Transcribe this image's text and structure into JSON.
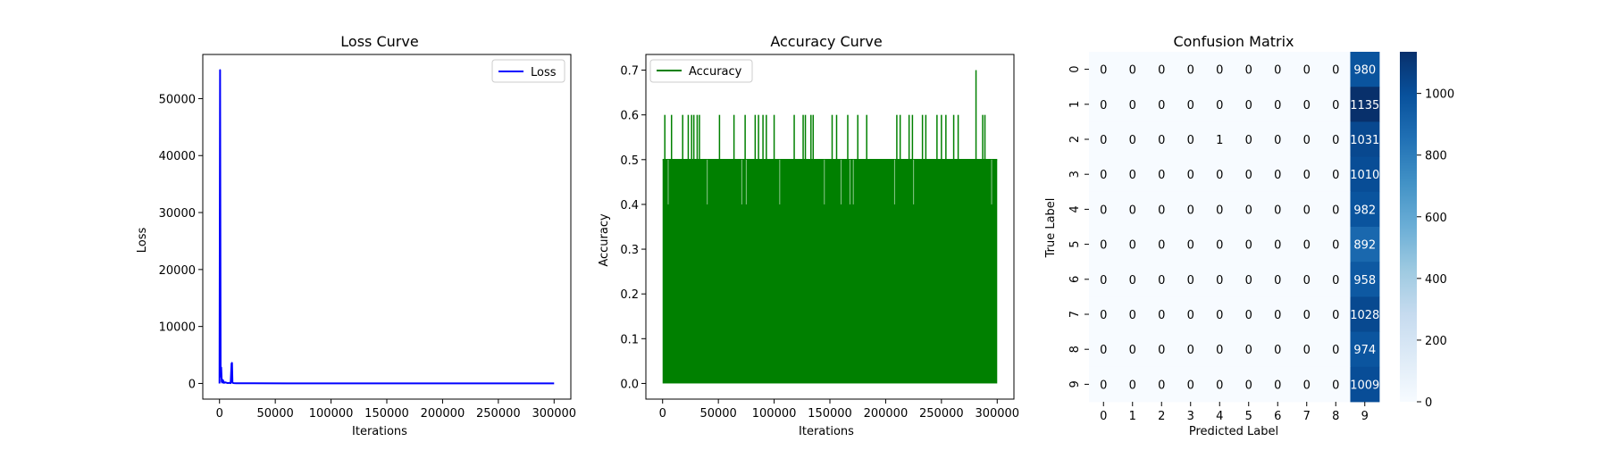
{
  "colors": {
    "loss_line": "#0000ff",
    "accuracy_line": "#008000",
    "cm_low": "#f7fbff",
    "cm_high": "#08306b",
    "text_dark": "#000000",
    "text_light": "#ffffff"
  },
  "chart_data": [
    {
      "type": "line",
      "title": "Loss Curve",
      "xlabel": "Iterations",
      "ylabel": "Loss",
      "xlim": [
        -15000,
        315000
      ],
      "ylim": [
        -2750,
        57750
      ],
      "xticks": [
        0,
        50000,
        100000,
        150000,
        200000,
        250000,
        300000
      ],
      "xtick_labels": [
        "0",
        "50000",
        "100000",
        "150000",
        "200000",
        "250000",
        "300000"
      ],
      "yticks": [
        0,
        10000,
        20000,
        30000,
        40000,
        50000
      ],
      "ytick_labels": [
        "0",
        "10000",
        "20000",
        "30000",
        "40000",
        "50000"
      ],
      "legend": "top-right",
      "series": [
        {
          "name": "Loss",
          "x": [
            0,
            500,
            1000,
            1500,
            2000,
            2500,
            3000,
            4000,
            5000,
            7000,
            9000,
            10000,
            10800,
            11200,
            11600,
            12000,
            13000,
            15000,
            20000,
            30000,
            60000,
            100000,
            150000,
            200000,
            250000,
            300000
          ],
          "values": [
            0,
            55000,
            1200,
            2800,
            300,
            150,
            600,
            100,
            200,
            80,
            100,
            50,
            3500,
            3600,
            200,
            80,
            60,
            40,
            30,
            25,
            20,
            15,
            10,
            8,
            6,
            5
          ]
        }
      ]
    },
    {
      "type": "line",
      "title": "Accuracy Curve",
      "xlabel": "Iterations",
      "ylabel": "Accuracy",
      "xlim": [
        -15000,
        315000
      ],
      "ylim": [
        -0.035,
        0.735
      ],
      "xticks": [
        0,
        50000,
        100000,
        150000,
        200000,
        250000,
        300000
      ],
      "xtick_labels": [
        "0",
        "50000",
        "100000",
        "150000",
        "200000",
        "250000",
        "300000"
      ],
      "yticks": [
        0.0,
        0.1,
        0.2,
        0.3,
        0.4,
        0.5,
        0.6,
        0.7
      ],
      "ytick_labels": [
        "0.0",
        "0.1",
        "0.2",
        "0.3",
        "0.4",
        "0.5",
        "0.6",
        "0.7"
      ],
      "legend": "top-left",
      "series": [
        {
          "name": "Accuracy",
          "x_start": 0,
          "x_end": 300000,
          "baseline_low": 0.0,
          "baseline_high": 0.5,
          "spikes_0_6_at": [
            2000,
            8000,
            18000,
            23000,
            26000,
            28000,
            31000,
            33000,
            51000,
            64000,
            74000,
            83000,
            86000,
            90000,
            93000,
            100000,
            118000,
            126000,
            128000,
            133000,
            135000,
            152000,
            156000,
            166000,
            175000,
            183000,
            210000,
            213000,
            221000,
            224000,
            233000,
            236000,
            246000,
            250000,
            254000,
            261000,
            265000,
            287000,
            289000
          ],
          "spike_0_7_at": 281000,
          "dips_0_4_at": [
            5000,
            40000,
            71000,
            75000,
            105000,
            145000,
            160000,
            168000,
            171000,
            208000,
            225000,
            295000
          ]
        }
      ]
    },
    {
      "type": "heatmap",
      "title": "Confusion Matrix",
      "xlabel": "Predicted Label",
      "ylabel": "True Label",
      "x_categories": [
        "0",
        "1",
        "2",
        "3",
        "4",
        "5",
        "6",
        "7",
        "8",
        "9"
      ],
      "y_categories": [
        "0",
        "1",
        "2",
        "3",
        "4",
        "5",
        "6",
        "7",
        "8",
        "9"
      ],
      "values": [
        [
          0,
          0,
          0,
          0,
          0,
          0,
          0,
          0,
          0,
          980
        ],
        [
          0,
          0,
          0,
          0,
          0,
          0,
          0,
          0,
          0,
          1135
        ],
        [
          0,
          0,
          0,
          0,
          1,
          0,
          0,
          0,
          0,
          1031
        ],
        [
          0,
          0,
          0,
          0,
          0,
          0,
          0,
          0,
          0,
          1010
        ],
        [
          0,
          0,
          0,
          0,
          0,
          0,
          0,
          0,
          0,
          982
        ],
        [
          0,
          0,
          0,
          0,
          0,
          0,
          0,
          0,
          0,
          892
        ],
        [
          0,
          0,
          0,
          0,
          0,
          0,
          0,
          0,
          0,
          958
        ],
        [
          0,
          0,
          0,
          0,
          0,
          0,
          0,
          0,
          0,
          1028
        ],
        [
          0,
          0,
          0,
          0,
          0,
          0,
          0,
          0,
          0,
          974
        ],
        [
          0,
          0,
          0,
          0,
          0,
          0,
          0,
          0,
          0,
          1009
        ]
      ],
      "vmin": 0,
      "vmax": 1135,
      "colorbar_ticks": [
        0,
        200,
        400,
        600,
        800,
        1000
      ],
      "colorbar_tick_labels": [
        "0",
        "200",
        "400",
        "600",
        "800",
        "1000"
      ]
    }
  ]
}
